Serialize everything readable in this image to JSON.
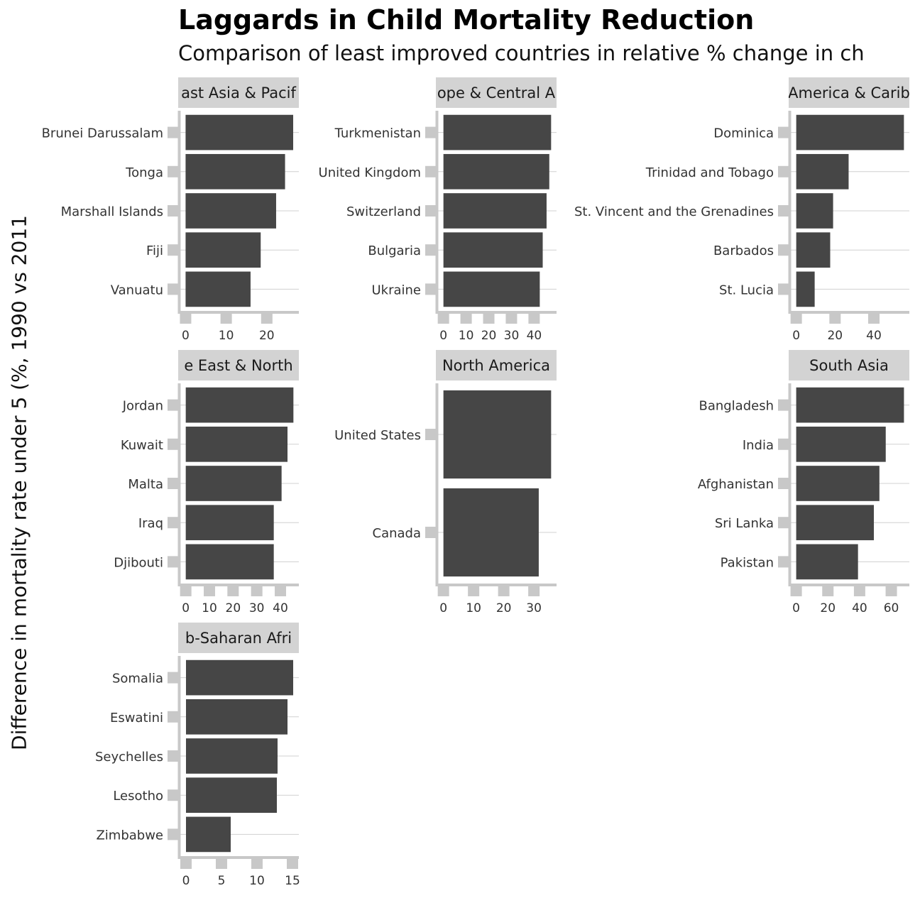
{
  "chart_data": {
    "type": "bar",
    "orientation": "horizontal",
    "title": "Laggards in Child Mortality Reduction",
    "subtitle": "Comparison of least improved countries in relative % change in ch",
    "ylabel": "Difference in mortality rate under 5 (%, 1990 vs 2011",
    "xlabel": "",
    "colors": {
      "bar": "#464646",
      "strip": "#d3d3d3",
      "axis": "#c8c8c8",
      "grid": "#d0d0d0"
    },
    "panels": [
      {
        "strip_label": "ast Asia & Pacif",
        "categories": [
          "Brunei Darussalam",
          "Tonga",
          "Marshall Islands",
          "Fiji",
          "Vanuatu"
        ],
        "values": [
          26.5,
          24.5,
          22.3,
          18.5,
          16.0
        ],
        "xlim": [
          -1.3,
          27.9
        ],
        "ticks": [
          0,
          10,
          20
        ]
      },
      {
        "strip_label": "ope & Central A",
        "categories": [
          "Turkmenistan",
          "United Kingdom",
          "Switzerland",
          "Bulgaria",
          "Ukraine"
        ],
        "values": [
          47.5,
          46.7,
          45.5,
          43.8,
          42.5
        ],
        "xlim": [
          -2.4,
          49.9
        ],
        "ticks": [
          0,
          10,
          20,
          30,
          40
        ]
      },
      {
        "strip_label": "America & Carib",
        "categories": [
          "Dominica",
          "Trinidad and Tobago",
          "St. Vincent and the Grenadines",
          "Barbados",
          "St. Lucia"
        ],
        "values": [
          55.5,
          27.0,
          19.0,
          17.5,
          9.5
        ],
        "xlim": [
          -2.8,
          58.3
        ],
        "ticks": [
          0,
          20,
          40
        ]
      },
      {
        "strip_label": "e East & North",
        "categories": [
          "Jordan",
          "Kuwait",
          "Malta",
          "Iraq",
          "Djibouti"
        ],
        "values": [
          45.5,
          43.0,
          40.5,
          37.2,
          37.2
        ],
        "xlim": [
          -2.3,
          47.8
        ],
        "ticks": [
          0,
          10,
          20,
          30,
          40
        ]
      },
      {
        "strip_label": "North America",
        "categories": [
          "United States",
          "Canada"
        ],
        "values": [
          35.7,
          31.6
        ],
        "xlim": [
          -1.8,
          37.5
        ],
        "ticks": [
          0,
          10,
          20,
          30
        ]
      },
      {
        "strip_label": "South Asia",
        "categories": [
          "Bangladesh",
          "India",
          "Afghanistan",
          "Sri Lanka",
          "Pakistan"
        ],
        "values": [
          68.0,
          56.5,
          52.5,
          49.0,
          39.0
        ],
        "xlim": [
          -3.4,
          71.4
        ],
        "ticks": [
          0,
          20,
          40,
          60
        ]
      },
      {
        "strip_label": "b-Saharan Afri",
        "categories": [
          "Somalia",
          "Eswatini",
          "Seychelles",
          "Lesotho",
          "Zimbabwe"
        ],
        "values": [
          15.1,
          14.3,
          12.9,
          12.8,
          6.3
        ],
        "xlim": [
          -0.8,
          15.9
        ],
        "ticks": [
          0,
          5,
          10,
          15
        ]
      }
    ]
  }
}
